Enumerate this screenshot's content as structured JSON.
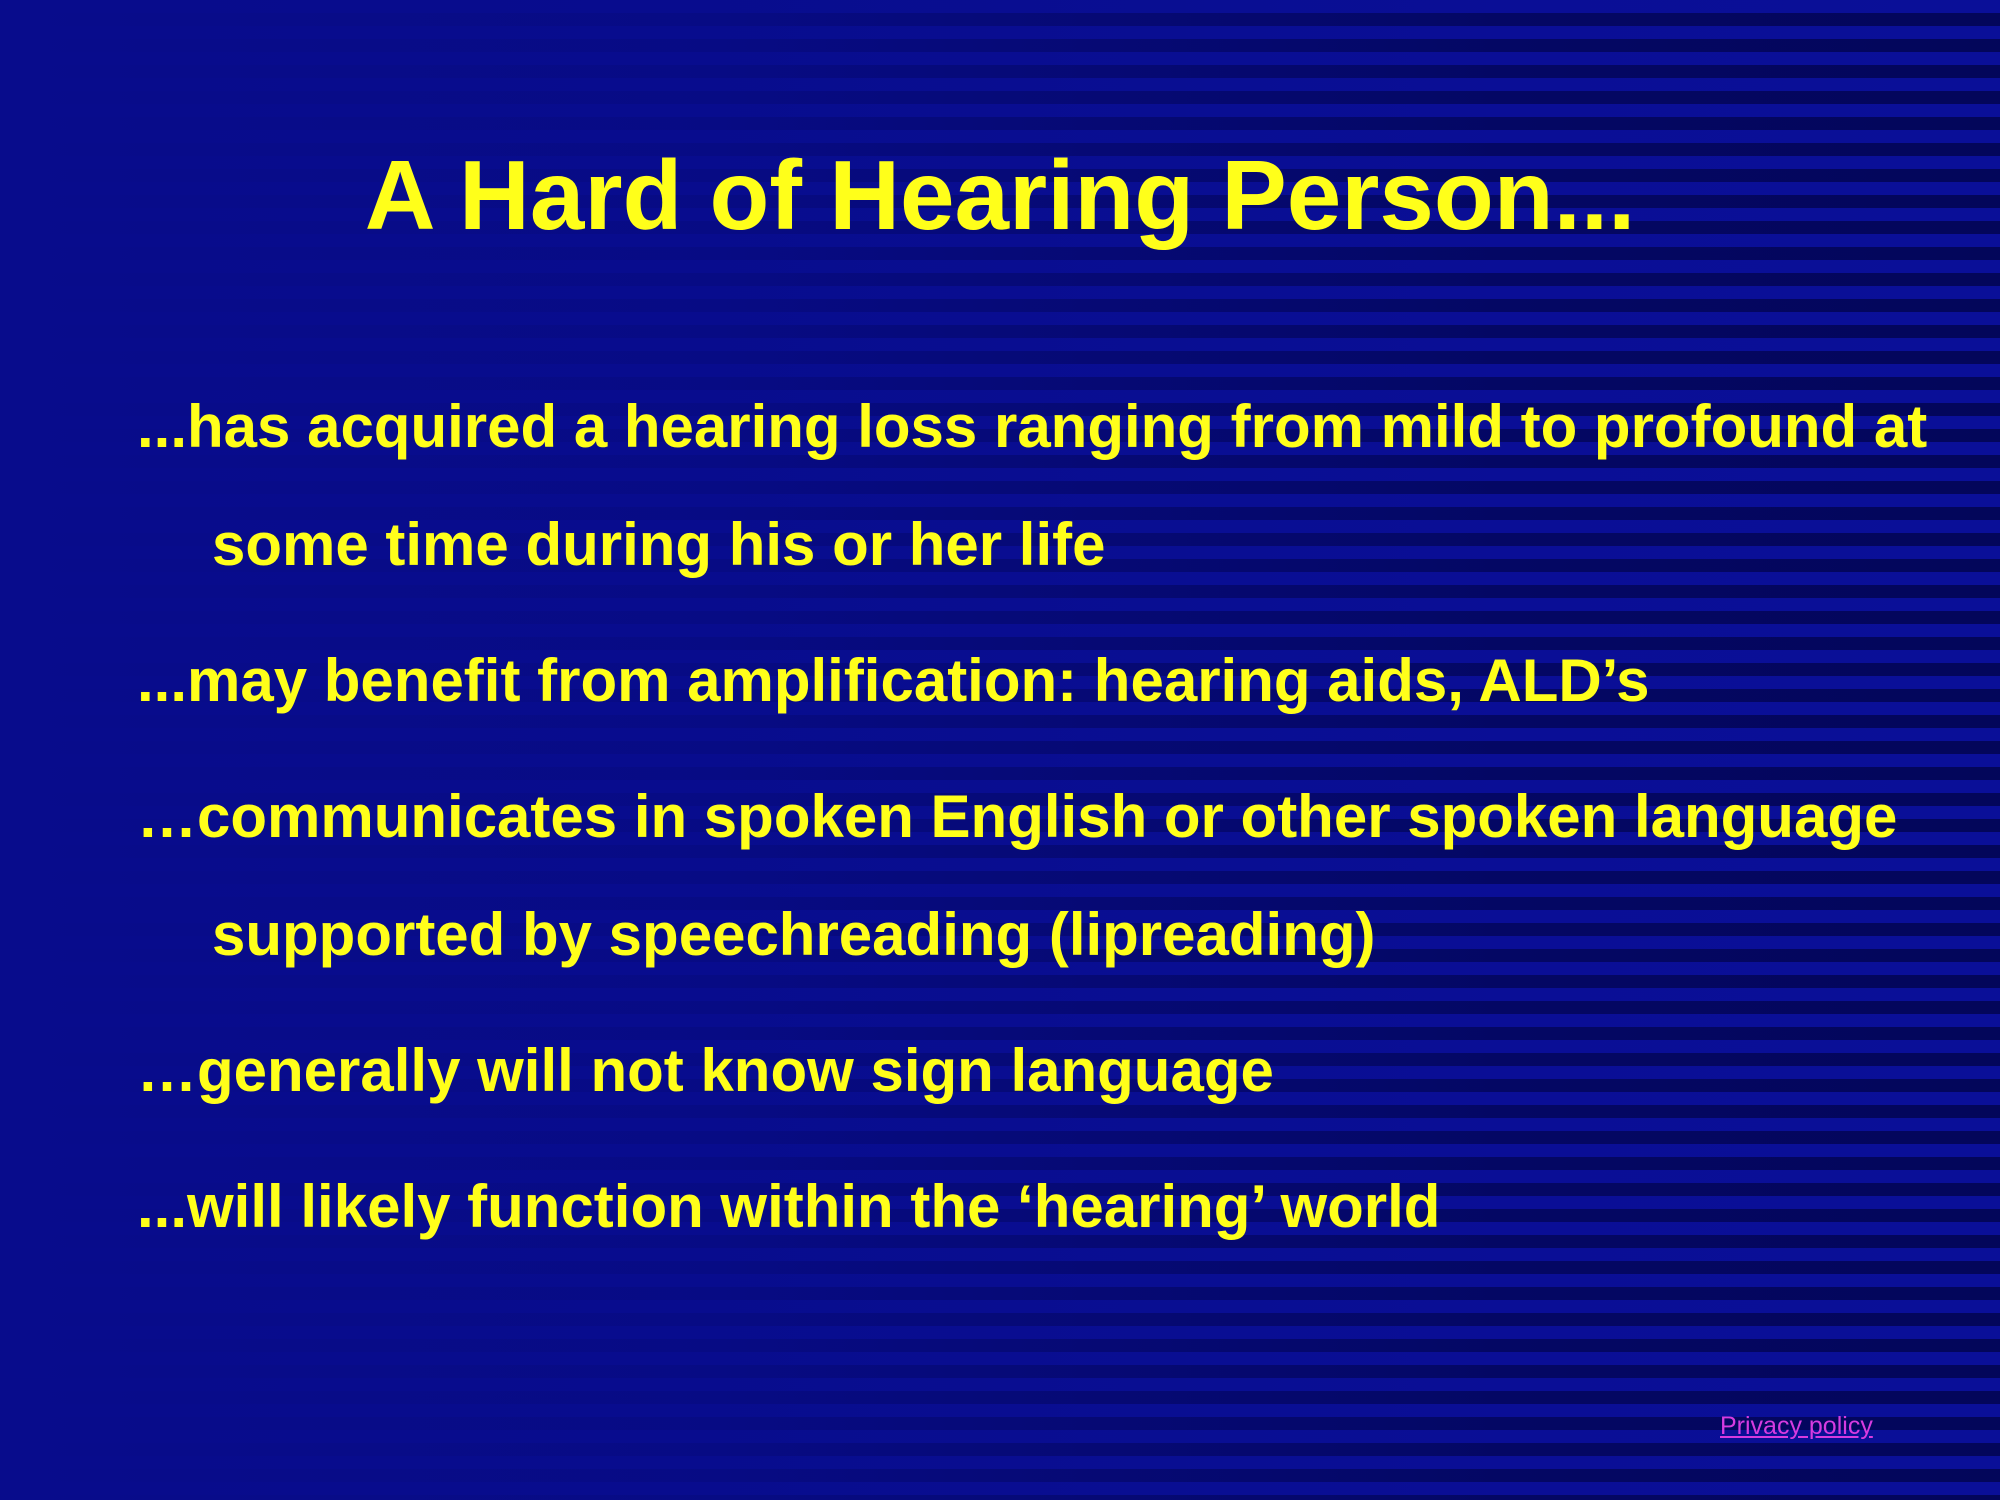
{
  "slide": {
    "title": "A Hard of Hearing Person...",
    "bullets": [
      "...has acquired a hearing loss ranging from mild to profound at some time during his or her life",
      "...may benefit from amplification: hearing aids, ALD’s",
      "…communicates in spoken English or other spoken language supported by speechreading (lipreading)",
      "…generally will not know sign language",
      "...will likely function within the ‘hearing’ world"
    ]
  },
  "footer": {
    "privacy_link": "Privacy policy"
  },
  "colors": {
    "background": "#060a82",
    "text": "#ffff1a",
    "link": "#d63be0"
  }
}
